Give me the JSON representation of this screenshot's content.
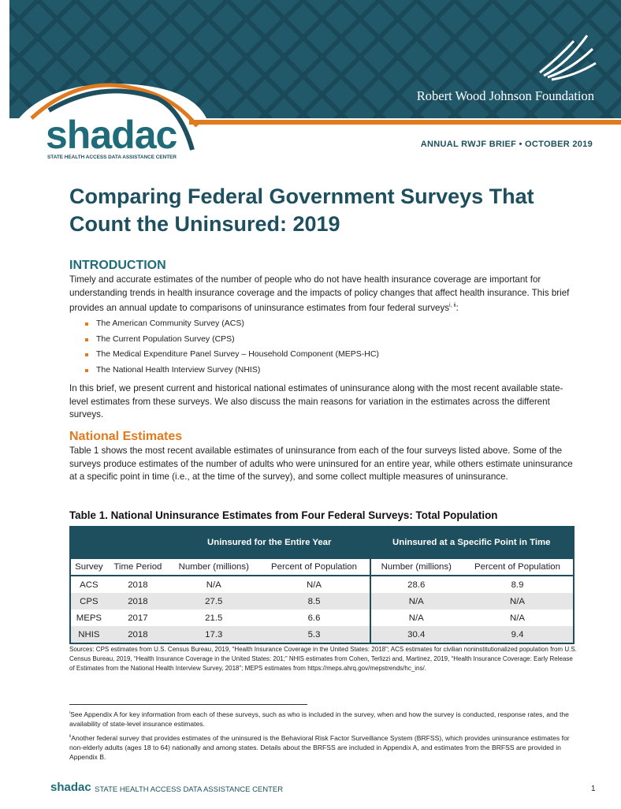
{
  "header": {
    "org_name": "Robert Wood Johnson Foundation",
    "logo": "shadac",
    "logo_subtitle": "STATE HEALTH ACCESS DATA ASSISTANCE CENTER",
    "brief_label": "ANNUAL RWJF BRIEF • OCTOBER 2019"
  },
  "title": "Comparing Federal Government Surveys That Count the Uninsured: 2019",
  "introduction": {
    "heading": "INTRODUCTION",
    "paragraph": "Timely and accurate estimates of the number of people who do not have health insurance coverage are important for understanding trends in health insurance coverage and the impacts of policy changes that affect health insurance. This brief provides an annual update to comparisons of uninsurance estimates from four federal surveys",
    "paragraph_sup": "i, ii",
    "paragraph_end": ":",
    "bullets": [
      "The American Community Survey (ACS)",
      "The Current Population Survey (CPS)",
      "The Medical Expenditure Panel Survey – Household Component (MEPS-HC)",
      "The National Health Interview Survey (NHIS)"
    ],
    "paragraph2": "In this brief, we present current and historical national estimates of uninsurance along with the most recent available state-level estimates from these surveys. We also discuss the main reasons for variation in the estimates across the different surveys."
  },
  "national_estimates": {
    "heading": "National Estimates",
    "paragraph": "Table 1 shows the most recent available estimates of uninsurance from each of the four surveys listed above. Some of the surveys produce estimates of the number of adults who were uninsured for an entire year, while others estimate uninsurance at a specific point in time (i.e., at the time of the survey), and some collect multiple measures of uninsurance."
  },
  "table": {
    "caption": "Table 1. National Uninsurance Estimates from Four Federal Surveys: Total Population",
    "groups": [
      "Uninsured for the Entire Year",
      "Uninsured at a Specific Point in Time"
    ],
    "columns": [
      "Survey",
      "Time Period",
      "Number (millions)",
      "Percent of Population",
      "Number (millions)",
      "Percent of Population"
    ],
    "rows": [
      [
        "ACS",
        "2018",
        "N/A",
        "N/A",
        "28.6",
        "8.9"
      ],
      [
        "CPS",
        "2018",
        "27.5",
        "8.5",
        "N/A",
        "N/A"
      ],
      [
        "MEPS",
        "2017",
        "21.5",
        "6.6",
        "N/A",
        "N/A"
      ],
      [
        "NHIS",
        "2018",
        "17.3",
        "5.3",
        "30.4",
        "9.4"
      ]
    ]
  },
  "sources": "Sources:  CPS estimates from U.S. Census Bureau, 2019, “Health Insurance Coverage in the United States: 2018”; ACS estimates for civilian noninstitutionalized population from U.S. Census Bureau, 2019, “Health Insurance Coverage in the United States: 201;” NHIS estimates from Cohen, Terlizzi and, Martinez, 2019, “Health Insurance Coverage: Early Release of Estimates from the National Health Interview Survey, 2018”; MEPS estimates from https://meps.ahrq.gov/mepstrends/hc_ins/.",
  "footnotes": [
    {
      "marker": "i",
      "text": "See Appendix A for key information from each of these surveys, such as who is included in the survey, when and how the survey is conducted, response rates, and the availability of state-level insurance estimates."
    },
    {
      "marker": "ii",
      "text": "Another federal survey that provides estimates of the uninsured is the Behavioral Risk Factor Surveillance System (BRFSS), which provides uninsurance estimates for non-elderly adults (ages 18 to 64) nationally and among states. Details about the BRFSS are included in Appendix A, and estimates from the BRFSS are provided in Appendix B."
    }
  ],
  "footer": {
    "logo": "shadac",
    "text": "STATE HEALTH ACCESS DATA ASSISTANCE CENTER",
    "page": "1"
  }
}
